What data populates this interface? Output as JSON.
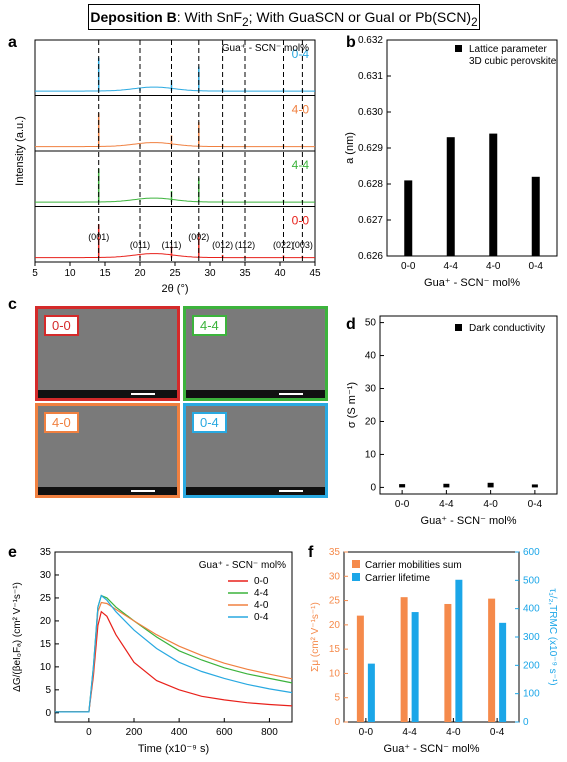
{
  "header": {
    "title_bold": "Deposition B",
    "title_rest": ": With SnF",
    "title_sub": "2",
    "title_tail": "; With GuaSCN or GuaI or Pb(SCN)",
    "title_sub2": "2"
  },
  "panels": {
    "a": "a",
    "b": "b",
    "c": "c",
    "d": "d",
    "e": "e",
    "f": "f"
  },
  "colors": {
    "red": "#e8211b",
    "green": "#3cb33c",
    "orange": "#f08040",
    "blue": "#29a9e1"
  },
  "sem": {
    "tiles": [
      {
        "label": "0-0",
        "color": "#d42a2a"
      },
      {
        "label": "4-4",
        "color": "#3cb33c"
      },
      {
        "label": "4-0",
        "color": "#f08040"
      },
      {
        "label": "0-4",
        "color": "#29a9e1"
      }
    ]
  },
  "chart_data": [
    {
      "id": "a",
      "type": "line",
      "xlabel": "2θ (°)",
      "ylabel": "Intensity (a.u.)",
      "xlim": [
        5,
        45
      ],
      "xticks": [
        "5",
        "10",
        "15",
        "20",
        "25",
        "30",
        "35",
        "40",
        "45"
      ],
      "legend_title": "Gua⁺ - SCN⁻ mol%",
      "series": [
        {
          "name": "0-4",
          "color": "#29a9e1"
        },
        {
          "name": "4-0",
          "color": "#f08040"
        },
        {
          "name": "4-4",
          "color": "#3cb33c"
        },
        {
          "name": "0-0",
          "color": "#e8211b"
        }
      ],
      "peaks": [
        14.1,
        20.0,
        24.5,
        28.4,
        31.8,
        35.0,
        40.5,
        43.2
      ],
      "peak_labels": [
        "(001)",
        "(011)",
        "(111)",
        "(002)",
        "(012)",
        "(112)",
        "(022)",
        "(003)"
      ]
    },
    {
      "id": "b",
      "type": "bar",
      "xlabel": "Gua⁺ - SCN⁻ mol%",
      "ylabel": "a (nm)",
      "ylim": [
        0.626,
        0.632
      ],
      "yticks": [
        "0.626",
        "0.627",
        "0.628",
        "0.629",
        "0.630",
        "0.631",
        "0.632"
      ],
      "categories": [
        "0-0",
        "4-4",
        "4-0",
        "0-4"
      ],
      "legend": [
        "Lattice parameter",
        "3D cubic perovskite"
      ],
      "values": [
        0.6281,
        0.6293,
        0.6294,
        0.6282
      ]
    },
    {
      "id": "d",
      "type": "bar",
      "xlabel": "Gua⁺ - SCN⁻ mol%",
      "ylabel": "σ (S m⁻¹)",
      "ylim": [
        -2,
        52
      ],
      "yticks": [
        "0",
        "10",
        "20",
        "30",
        "40",
        "50"
      ],
      "categories": [
        "0-0",
        "4-4",
        "4-0",
        "0-4"
      ],
      "legend": [
        "Dark conductivity"
      ],
      "values": [
        1.0,
        1.1,
        1.4,
        0.9
      ]
    },
    {
      "id": "e",
      "type": "line",
      "xlabel": "Time (x10⁻⁹ s)",
      "ylabel": "ΔG/(βeI₀Fₐ) (cm² V⁻¹s⁻¹)",
      "xlim": [
        -150,
        900
      ],
      "ylim": [
        -2,
        35
      ],
      "xticks": [
        "0",
        "200",
        "400",
        "600",
        "800"
      ],
      "yticks": [
        "0",
        "5",
        "10",
        "15",
        "20",
        "25",
        "30",
        "35"
      ],
      "legend_title": "Gua⁺ - SCN⁻ mol%",
      "series": [
        {
          "name": "0-0",
          "color": "#e8211b",
          "x": [
            -150,
            0,
            20,
            40,
            55,
            80,
            120,
            200,
            300,
            400,
            500,
            600,
            700,
            800,
            900
          ],
          "y": [
            0.2,
            0.2,
            8,
            19,
            22,
            21,
            17,
            11,
            7,
            5,
            3.6,
            2.8,
            2.2,
            1.8,
            1.5
          ]
        },
        {
          "name": "4-4",
          "color": "#3cb33c",
          "x": [
            -150,
            0,
            20,
            40,
            55,
            80,
            120,
            200,
            300,
            400,
            500,
            600,
            700,
            800,
            900
          ],
          "y": [
            0.2,
            0.2,
            10,
            23,
            25.5,
            25,
            23,
            20,
            16.5,
            13.5,
            11.5,
            9.8,
            8.5,
            7.5,
            6.5
          ]
        },
        {
          "name": "4-0",
          "color": "#f08040",
          "x": [
            -150,
            0,
            20,
            40,
            55,
            80,
            120,
            200,
            300,
            400,
            500,
            600,
            700,
            800,
            900
          ],
          "y": [
            0.2,
            0.2,
            9,
            22,
            24,
            23.8,
            22.5,
            20,
            17,
            14.5,
            12.5,
            10.8,
            9.5,
            8.4,
            7.4
          ]
        },
        {
          "name": "0-4",
          "color": "#29a9e1",
          "x": [
            -150,
            0,
            20,
            40,
            55,
            80,
            120,
            200,
            300,
            400,
            500,
            600,
            700,
            800,
            900
          ],
          "y": [
            0.2,
            0.2,
            10,
            23,
            25.5,
            24.5,
            22,
            18,
            14,
            11,
            9,
            7.5,
            6.2,
            5.2,
            4.4
          ]
        }
      ]
    },
    {
      "id": "f",
      "type": "bar",
      "xlabel": "Gua⁺ - SCN⁻ mol%",
      "ylabel": "Σμ (cm² V⁻¹s⁻¹)",
      "y2label": "τ₁/₂,TRMC (x10⁻⁹ s⁻¹)",
      "ylim": [
        0,
        35
      ],
      "y2lim": [
        0,
        600
      ],
      "yticks": [
        "0",
        "5",
        "10",
        "15",
        "20",
        "25",
        "30",
        "35"
      ],
      "y2ticks": [
        "0",
        "100",
        "200",
        "300",
        "400",
        "500",
        "600"
      ],
      "categories": [
        "0-0",
        "4-4",
        "4-0",
        "0-4"
      ],
      "series": [
        {
          "name": "Carrier mobilities sum",
          "color": "#f58a4b",
          "axis": "left",
          "values": [
            21.9,
            25.7,
            24.3,
            25.4
          ]
        },
        {
          "name": "Carrier lifetime",
          "color": "#1ba6e8",
          "axis": "right",
          "values": [
            206,
            388,
            502,
            350
          ]
        }
      ]
    }
  ]
}
